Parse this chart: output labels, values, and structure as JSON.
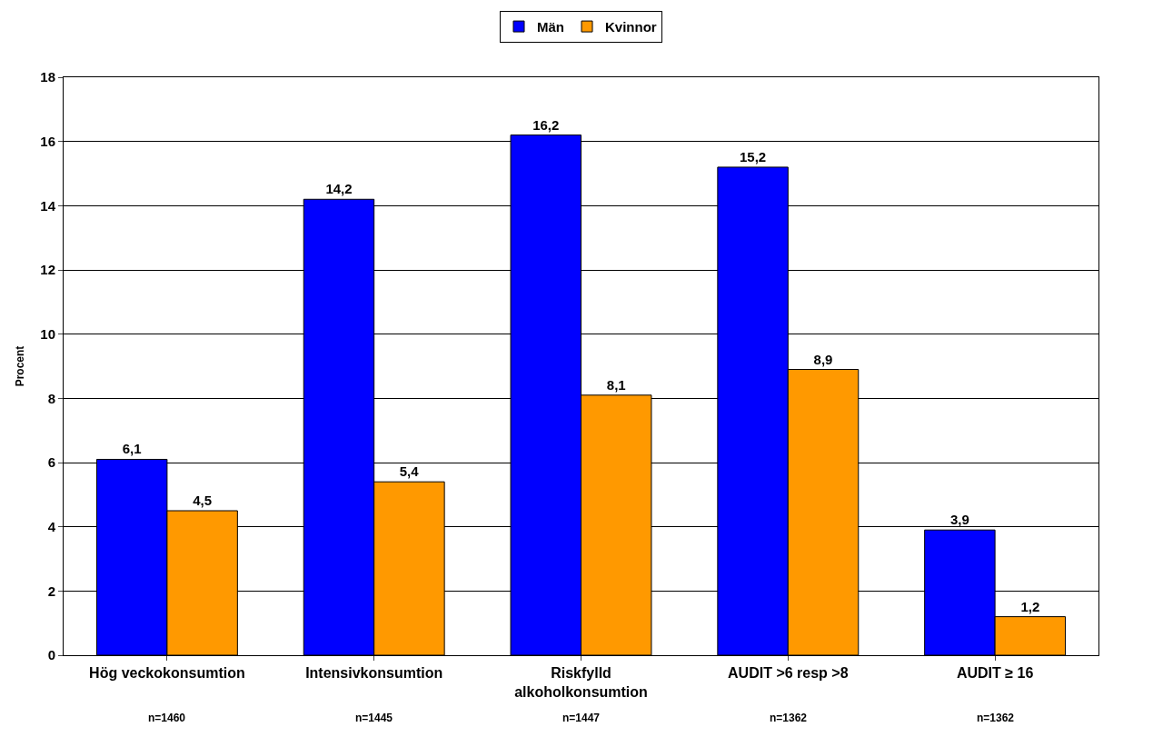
{
  "chart_data": {
    "type": "bar",
    "ylabel": "Procent",
    "categories": [
      "Hög veckokonsumtion",
      "Intensivkonsumtion",
      "Riskfylld alkoholkonsumtion",
      "AUDIT >6 resp >8",
      "AUDIT ≥ 16"
    ],
    "series": [
      {
        "name": "Män",
        "color": "#0000ff",
        "values": [
          6.1,
          14.2,
          16.2,
          15.2,
          3.9
        ],
        "value_labels": [
          "6,1",
          "14,2",
          "16,2",
          "15,2",
          "3,9"
        ]
      },
      {
        "name": "Kvinnor",
        "color": "#ff9900",
        "values": [
          4.5,
          5.4,
          8.1,
          8.9,
          1.2
        ],
        "value_labels": [
          "4,5",
          "5,4",
          "8,1",
          "8,9",
          "1,2"
        ]
      }
    ],
    "ylim": [
      0,
      18
    ],
    "yticks": [
      0,
      2,
      4,
      6,
      8,
      10,
      12,
      14,
      16,
      18
    ],
    "grid": "y",
    "legend": "top",
    "annotations": [
      "n=1460",
      "n=1445",
      "n=1447",
      "n=1362",
      "n=1362"
    ]
  }
}
